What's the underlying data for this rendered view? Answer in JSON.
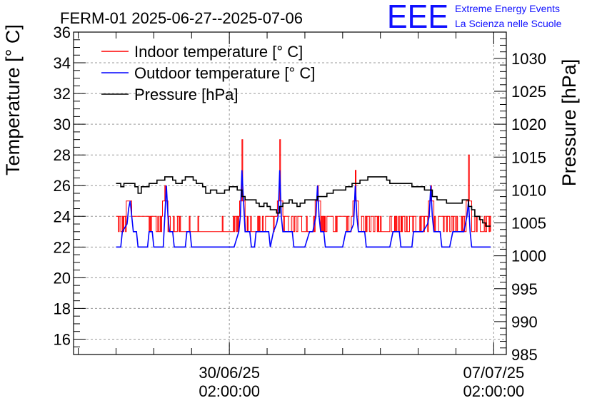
{
  "header": {
    "title": "FERM-01 2025-06-27--2025-07-06",
    "logo_mark": "EEE",
    "logo_line1": "Extreme Energy Events",
    "logo_line2": "La Scienza nelle Scuole"
  },
  "colors": {
    "indoor": "#ff0000",
    "outdoor": "#0000ff",
    "pressure": "#000000",
    "logo": "#1010ff",
    "grid": "#9a9a9a"
  },
  "chart_data": {
    "type": "line",
    "title": "FERM-01 2025-06-27--2025-07-06",
    "ylabel": "Temperature [° C]",
    "y2label": "Pressure [hPa]",
    "ylim": [
      15,
      36
    ],
    "y2lim": [
      985,
      1034
    ],
    "y_ticks": [
      "16",
      "18",
      "20",
      "22",
      "24",
      "26",
      "28",
      "30",
      "32",
      "34",
      "36"
    ],
    "y2_ticks": [
      "985",
      "990",
      "995",
      "1000",
      "1005",
      "1010",
      "1015",
      "1020",
      "1025",
      "1030"
    ],
    "x_ticks": [
      {
        "date": "30/06/25",
        "time": "02:00:00",
        "t": 72
      },
      {
        "date": "07/07/25",
        "time": "02:00:00",
        "t": 240
      }
    ],
    "xlim": [
      -27,
      248
    ],
    "legend_position": "top-left",
    "grid": true,
    "series": [
      {
        "name": "Indoor temperature [° C]",
        "axis": "left",
        "baseline": [
          [
            0,
            24
          ],
          [
            4,
            23.5
          ],
          [
            5,
            24
          ],
          [
            16,
            24
          ],
          [
            26,
            23.5
          ],
          [
            40,
            23.3
          ],
          [
            52,
            23
          ],
          [
            70,
            23
          ],
          [
            78,
            23.5
          ],
          [
            93,
            23
          ],
          [
            98,
            24
          ],
          [
            106,
            23.5
          ],
          [
            120,
            23.5
          ],
          [
            135,
            23.5
          ],
          [
            146,
            24
          ],
          [
            155,
            23.5
          ],
          [
            168,
            23.5
          ],
          [
            182,
            23.5
          ],
          [
            197,
            23.5
          ],
          [
            215,
            23.5
          ],
          [
            220,
            23.5
          ],
          [
            235,
            23.5
          ],
          [
            238,
            23.5
          ]
        ],
        "spikes": [
          [
            8,
            25
          ],
          [
            31,
            26
          ],
          [
            80,
            29
          ],
          [
            104,
            29
          ],
          [
            128,
            26
          ],
          [
            152,
            27
          ],
          [
            200,
            26
          ],
          [
            224,
            28
          ]
        ]
      },
      {
        "name": "Outdoor temperature [° C]",
        "axis": "left",
        "points": [
          [
            0,
            22
          ],
          [
            3,
            22
          ],
          [
            4,
            23
          ],
          [
            7,
            23.5
          ],
          [
            8,
            24.5
          ],
          [
            9,
            25
          ],
          [
            10,
            24
          ],
          [
            11,
            23
          ],
          [
            13,
            23
          ],
          [
            14,
            22
          ],
          [
            20,
            22
          ],
          [
            21,
            23
          ],
          [
            23,
            23
          ],
          [
            24,
            22
          ],
          [
            30,
            22
          ],
          [
            31,
            24
          ],
          [
            32,
            26
          ],
          [
            33,
            24
          ],
          [
            34,
            23
          ],
          [
            36,
            23
          ],
          [
            37,
            22
          ],
          [
            44,
            22
          ],
          [
            45,
            23
          ],
          [
            47,
            23
          ],
          [
            48,
            22
          ],
          [
            53,
            22
          ],
          [
            55,
            22
          ],
          [
            63,
            22
          ],
          [
            72,
            22
          ],
          [
            75,
            22
          ],
          [
            78,
            23
          ],
          [
            79,
            24
          ],
          [
            80,
            27
          ],
          [
            81,
            25
          ],
          [
            82,
            23
          ],
          [
            85,
            23
          ],
          [
            86,
            22
          ],
          [
            88,
            22
          ],
          [
            89,
            23
          ],
          [
            97,
            23
          ],
          [
            98,
            22
          ],
          [
            100,
            23
          ],
          [
            102,
            23.5
          ],
          [
            103,
            24
          ],
          [
            104,
            27
          ],
          [
            105,
            24
          ],
          [
            106,
            23
          ],
          [
            112,
            23
          ],
          [
            113,
            22
          ],
          [
            114,
            22
          ],
          [
            117,
            22
          ],
          [
            118,
            22
          ],
          [
            120,
            22
          ],
          [
            123,
            23
          ],
          [
            125,
            23
          ],
          [
            126,
            23.5
          ],
          [
            127,
            24
          ],
          [
            128,
            26
          ],
          [
            129,
            24
          ],
          [
            130,
            23
          ],
          [
            132,
            23
          ],
          [
            133,
            22
          ],
          [
            141,
            22
          ],
          [
            144,
            22
          ],
          [
            146,
            23
          ],
          [
            149,
            23
          ],
          [
            151,
            23.5
          ],
          [
            152,
            26
          ],
          [
            153,
            24
          ],
          [
            154,
            23
          ],
          [
            158,
            23
          ],
          [
            159,
            22
          ],
          [
            164,
            22
          ],
          [
            168,
            22
          ],
          [
            174,
            22
          ],
          [
            176,
            23
          ],
          [
            180,
            23
          ],
          [
            181,
            22
          ],
          [
            188,
            22
          ],
          [
            189,
            23
          ],
          [
            195,
            23
          ],
          [
            198,
            23.5
          ],
          [
            199,
            24
          ],
          [
            200,
            26
          ],
          [
            201,
            24
          ],
          [
            202,
            23
          ],
          [
            206,
            23
          ],
          [
            207,
            22
          ],
          [
            212,
            22
          ],
          [
            214,
            23
          ],
          [
            221,
            23
          ],
          [
            222,
            23.5
          ],
          [
            223,
            24
          ],
          [
            224,
            25
          ],
          [
            225,
            23
          ],
          [
            226,
            22
          ],
          [
            230,
            22
          ],
          [
            238,
            22
          ]
        ]
      },
      {
        "name": "Pressure [hPa]",
        "axis": "right",
        "points": [
          [
            0,
            1011
          ],
          [
            3,
            1011
          ],
          [
            3,
            1010.5
          ],
          [
            5,
            1010.5
          ],
          [
            5,
            1011
          ],
          [
            12,
            1011
          ],
          [
            12,
            1010.5
          ],
          [
            14,
            1010.5
          ],
          [
            14,
            1009.5
          ],
          [
            16,
            1009.5
          ],
          [
            16,
            1010.5
          ],
          [
            21,
            1010.5
          ],
          [
            21,
            1011
          ],
          [
            26,
            1011
          ],
          [
            26,
            1011.5
          ],
          [
            31,
            1011.5
          ],
          [
            31,
            1012
          ],
          [
            36,
            1012
          ],
          [
            36,
            1011.5
          ],
          [
            38,
            1011.5
          ],
          [
            38,
            1011
          ],
          [
            42,
            1011
          ],
          [
            42,
            1011.5
          ],
          [
            44,
            1011.5
          ],
          [
            44,
            1012
          ],
          [
            49,
            1012
          ],
          [
            49,
            1011.5
          ],
          [
            51,
            1011.5
          ],
          [
            51,
            1011
          ],
          [
            55,
            1011
          ],
          [
            55,
            1010.5
          ],
          [
            57,
            1010.5
          ],
          [
            57,
            1009.5
          ],
          [
            60,
            1009.5
          ],
          [
            60,
            1010
          ],
          [
            64,
            1010
          ],
          [
            64,
            1009.5
          ],
          [
            69,
            1009.5
          ],
          [
            69,
            1010
          ],
          [
            72,
            1010
          ],
          [
            72,
            1010.5
          ],
          [
            77,
            1010.5
          ],
          [
            77,
            1010
          ],
          [
            80,
            1010
          ],
          [
            80,
            1009
          ],
          [
            82,
            1009
          ],
          [
            82,
            1008.5
          ],
          [
            89,
            1008.5
          ],
          [
            89,
            1008
          ],
          [
            91,
            1008
          ],
          [
            91,
            1007.5
          ],
          [
            94,
            1007.5
          ],
          [
            94,
            1008
          ],
          [
            96,
            1008
          ],
          [
            96,
            1007.5
          ],
          [
            98,
            1007.5
          ],
          [
            98,
            1007
          ],
          [
            102,
            1007
          ],
          [
            102,
            1006.5
          ],
          [
            104,
            1006.5
          ],
          [
            104,
            1007.5
          ],
          [
            106,
            1007.5
          ],
          [
            106,
            1008
          ],
          [
            110,
            1008
          ],
          [
            110,
            1008.5
          ],
          [
            112,
            1008.5
          ],
          [
            112,
            1008
          ],
          [
            115,
            1008
          ],
          [
            115,
            1007.5
          ],
          [
            117,
            1007.5
          ],
          [
            117,
            1008
          ],
          [
            120,
            1008
          ],
          [
            120,
            1008.5
          ],
          [
            128,
            1008.5
          ],
          [
            128,
            1009
          ],
          [
            134,
            1009
          ],
          [
            134,
            1009.5
          ],
          [
            138,
            1009.5
          ],
          [
            138,
            1010
          ],
          [
            146,
            1010
          ],
          [
            146,
            1010.5
          ],
          [
            150,
            1010.5
          ],
          [
            150,
            1011
          ],
          [
            155,
            1011
          ],
          [
            155,
            1011.5
          ],
          [
            160,
            1011.5
          ],
          [
            160,
            1012
          ],
          [
            172,
            1012
          ],
          [
            172,
            1011.5
          ],
          [
            174,
            1011.5
          ],
          [
            174,
            1011
          ],
          [
            188,
            1011
          ],
          [
            188,
            1010.5
          ],
          [
            196,
            1010.5
          ],
          [
            196,
            1010
          ],
          [
            201,
            1010
          ],
          [
            201,
            1009
          ],
          [
            204,
            1009
          ],
          [
            204,
            1008.5
          ],
          [
            210,
            1008.5
          ],
          [
            210,
            1008
          ],
          [
            220,
            1008
          ],
          [
            220,
            1008.5
          ],
          [
            224,
            1008.5
          ],
          [
            224,
            1007.5
          ],
          [
            226,
            1007.5
          ],
          [
            226,
            1007
          ],
          [
            228,
            1007
          ],
          [
            228,
            1006
          ],
          [
            231,
            1006
          ],
          [
            231,
            1005.5
          ],
          [
            233,
            1005.5
          ],
          [
            233,
            1005
          ],
          [
            235,
            1005
          ],
          [
            235,
            1004.5
          ],
          [
            238,
            1004.5
          ]
        ]
      }
    ]
  }
}
